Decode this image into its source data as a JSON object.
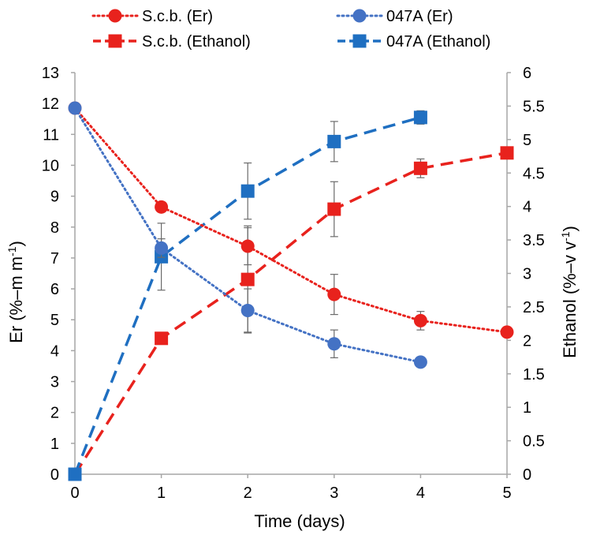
{
  "chart_data": {
    "type": "line",
    "title": "",
    "xlabel": "Time (days)",
    "ylabel": "Er (%–m m",
    "ylabel_sup": "-1",
    "ylabel_close": ")",
    "y2label": "Ethanol (%–v v",
    "y2label_sup": "-1",
    "y2label_close": ")",
    "xlim": [
      0,
      5
    ],
    "ylim": [
      0,
      13
    ],
    "y2lim": [
      0,
      6
    ],
    "x_ticks": [
      "0",
      "1",
      "2",
      "3",
      "4",
      "5"
    ],
    "y_ticks": [
      "0",
      "1",
      "2",
      "3",
      "4",
      "5",
      "6",
      "7",
      "8",
      "9",
      "10",
      "11",
      "12",
      "13"
    ],
    "y2_ticks": [
      "0",
      "0.5",
      "1",
      "1.5",
      "2",
      "2.5",
      "3",
      "3.5",
      "4",
      "4.5",
      "5",
      "5.5",
      "6"
    ],
    "grid": false,
    "legend_position": "top",
    "series": [
      {
        "name": "S.c.b. (Er)",
        "axis": "left",
        "color": "#E8221D",
        "line_style": "dotted",
        "marker": "circle",
        "x": [
          0,
          1,
          2,
          3,
          4,
          5
        ],
        "y": [
          11.85,
          8.65,
          7.38,
          5.82,
          4.97,
          4.6
        ],
        "err": [
          0,
          0,
          0.6,
          0.65,
          0.3,
          0
        ]
      },
      {
        "name": "S.c.b. (Ethanol)",
        "axis": "right",
        "color": "#E8221D",
        "line_style": "dashed",
        "marker": "square",
        "x": [
          0,
          1,
          2,
          3,
          4,
          5
        ],
        "y": [
          0,
          2.03,
          2.91,
          3.96,
          4.57,
          4.8
        ],
        "err": [
          0,
          0,
          0.8,
          0.41,
          0.14,
          0
        ]
      },
      {
        "name": "047A (Er)",
        "axis": "left",
        "color": "#4472C4",
        "line_style": "dotted",
        "marker": "circle",
        "x": [
          0,
          1,
          2,
          3,
          4
        ],
        "y": [
          11.85,
          7.32,
          5.3,
          4.22,
          3.63
        ],
        "err": [
          0,
          0.3,
          0.7,
          0.45,
          0.12
        ]
      },
      {
        "name": "047A (Ethanol)",
        "axis": "right",
        "color": "#1F6FC1",
        "line_style": "dashed",
        "marker": "square",
        "x": [
          0,
          1,
          2,
          3,
          4
        ],
        "y": [
          0,
          3.25,
          4.23,
          4.97,
          5.33
        ],
        "err": [
          0,
          0.5,
          0.42,
          0.3,
          0.1
        ]
      }
    ]
  }
}
